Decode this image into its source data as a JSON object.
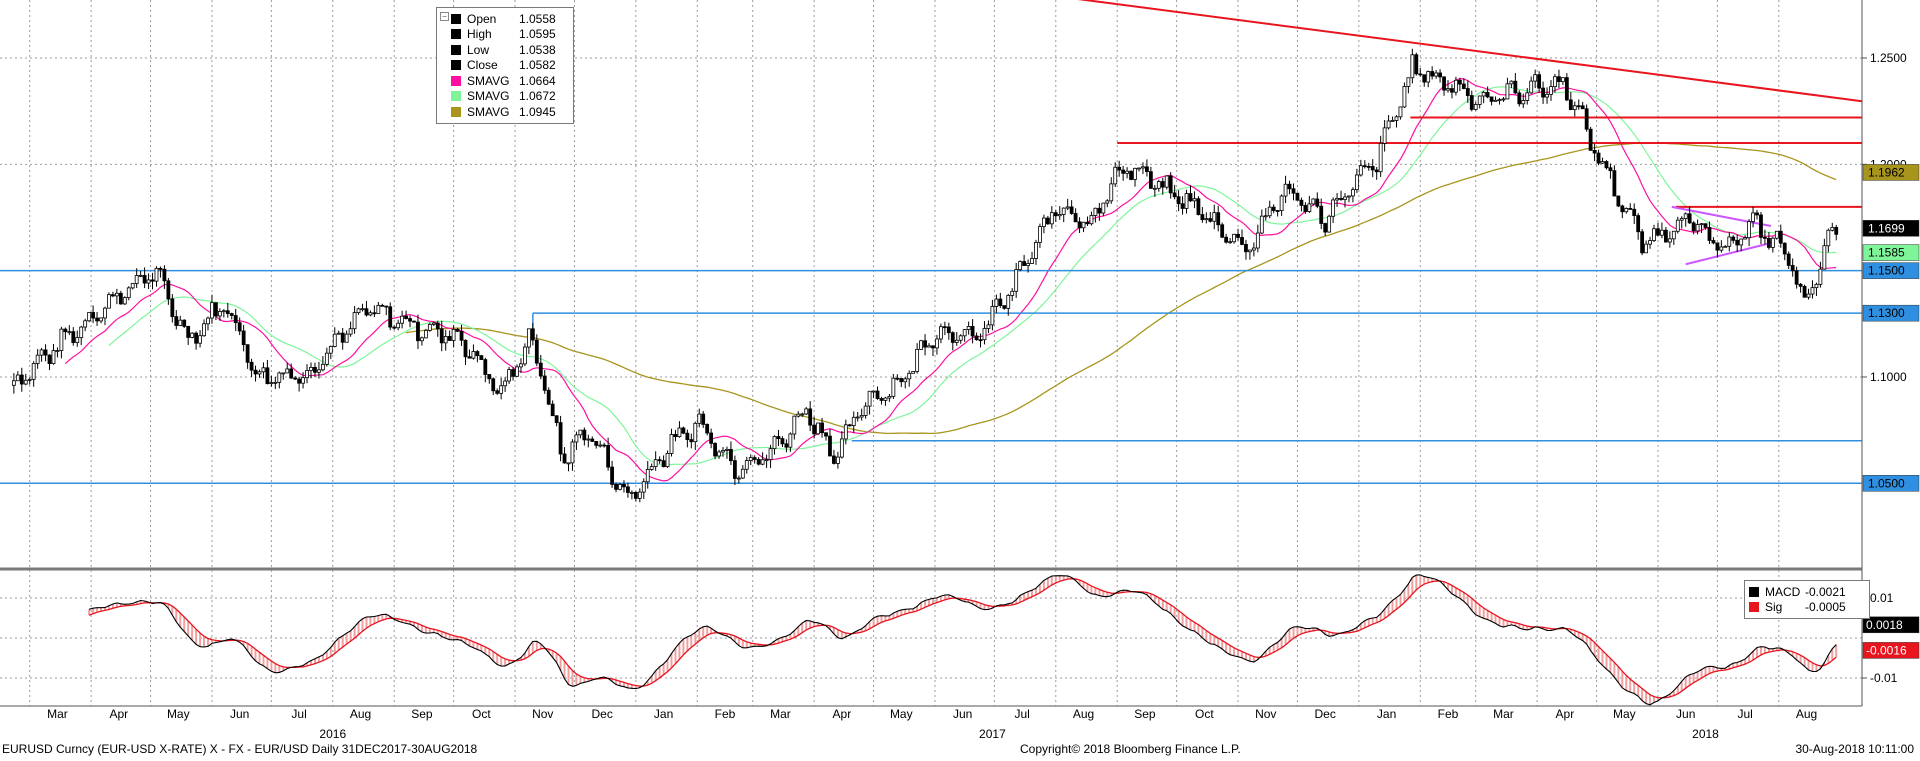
{
  "chart_data": [
    {
      "type": "candlestick",
      "pair": "EURUSD",
      "y_axis_labels": [
        "1.2500",
        "1.2000",
        "1.1000"
      ],
      "ylim": [
        1.02,
        1.28
      ],
      "grid": true,
      "x_month_labels": [
        "Mar",
        "Apr",
        "May",
        "Jun",
        "Jul",
        "Aug",
        "Sep",
        "Oct",
        "Nov",
        "Dec",
        "Jan",
        "Feb",
        "Mar",
        "Apr",
        "May",
        "Jun",
        "Jul",
        "Aug",
        "Sep",
        "Oct",
        "Nov",
        "Dec",
        "Jan",
        "Feb",
        "Mar",
        "Apr",
        "May",
        "Jun",
        "Jul",
        "Aug"
      ],
      "x_year_labels": [
        "2016",
        "2017",
        "2018"
      ],
      "legend": {
        "position": "top-left",
        "entries": [
          {
            "name": "Open",
            "value": "1.0558",
            "color": "#000000"
          },
          {
            "name": "High",
            "value": "1.0595",
            "color": "#000000"
          },
          {
            "name": "Low",
            "value": "1.0538",
            "color": "#000000"
          },
          {
            "name": "Close",
            "value": "1.0582",
            "color": "#000000"
          },
          {
            "name": "SMAVG",
            "value": "1.0664",
            "color": "#ff0fa0"
          },
          {
            "name": "SMAVG",
            "value": "1.0672",
            "color": "#7ff59a"
          },
          {
            "name": "SMAVG",
            "value": "1.0945",
            "color": "#a8951e"
          }
        ]
      },
      "price_points": [
        {
          "date": "2016-02-20",
          "price": 1.095
        },
        {
          "date": "2016-03-15",
          "price": 1.115
        },
        {
          "date": "2016-04-10",
          "price": 1.135
        },
        {
          "date": "2016-05-03",
          "price": 1.15
        },
        {
          "date": "2016-05-20",
          "price": 1.118
        },
        {
          "date": "2016-06-08",
          "price": 1.135
        },
        {
          "date": "2016-06-24",
          "price": 1.1
        },
        {
          "date": "2016-07-20",
          "price": 1.102
        },
        {
          "date": "2016-08-18",
          "price": 1.132
        },
        {
          "date": "2016-09-08",
          "price": 1.125
        },
        {
          "date": "2016-10-05",
          "price": 1.118
        },
        {
          "date": "2016-10-25",
          "price": 1.092
        },
        {
          "date": "2016-11-09",
          "price": 1.12
        },
        {
          "date": "2016-11-25",
          "price": 1.062
        },
        {
          "date": "2016-12-08",
          "price": 1.075
        },
        {
          "date": "2016-12-28",
          "price": 1.042
        },
        {
          "date": "2017-01-18",
          "price": 1.068
        },
        {
          "date": "2017-02-02",
          "price": 1.078
        },
        {
          "date": "2017-02-20",
          "price": 1.058
        },
        {
          "date": "2017-03-10",
          "price": 1.064
        },
        {
          "date": "2017-03-28",
          "price": 1.085
        },
        {
          "date": "2017-04-12",
          "price": 1.062
        },
        {
          "date": "2017-04-26",
          "price": 1.088
        },
        {
          "date": "2017-05-15",
          "price": 1.098
        },
        {
          "date": "2017-06-01",
          "price": 1.122
        },
        {
          "date": "2017-06-22",
          "price": 1.118
        },
        {
          "date": "2017-07-10",
          "price": 1.142
        },
        {
          "date": "2017-08-01",
          "price": 1.18
        },
        {
          "date": "2017-08-18",
          "price": 1.173
        },
        {
          "date": "2017-09-05",
          "price": 1.2
        },
        {
          "date": "2017-09-22",
          "price": 1.19
        },
        {
          "date": "2017-10-10",
          "price": 1.18
        },
        {
          "date": "2017-11-05",
          "price": 1.16
        },
        {
          "date": "2017-11-25",
          "price": 1.188
        },
        {
          "date": "2017-12-15",
          "price": 1.175
        },
        {
          "date": "2018-01-10",
          "price": 1.202
        },
        {
          "date": "2018-01-28",
          "price": 1.245
        },
        {
          "date": "2018-02-15",
          "price": 1.238
        },
        {
          "date": "2018-03-05",
          "price": 1.23
        },
        {
          "date": "2018-03-25",
          "price": 1.235
        },
        {
          "date": "2018-04-15",
          "price": 1.238
        },
        {
          "date": "2018-05-01",
          "price": 1.205
        },
        {
          "date": "2018-05-25",
          "price": 1.162
        },
        {
          "date": "2018-06-15",
          "price": 1.175
        },
        {
          "date": "2018-07-02",
          "price": 1.16
        },
        {
          "date": "2018-07-20",
          "price": 1.172
        },
        {
          "date": "2018-08-05",
          "price": 1.158
        },
        {
          "date": "2018-08-15",
          "price": 1.134
        },
        {
          "date": "2018-08-24",
          "price": 1.16
        },
        {
          "date": "2018-08-30",
          "price": 1.17
        }
      ],
      "horizontal_lines": [
        1.25,
        1.222,
        1.21,
        1.18,
        1.15,
        1.13,
        1.07,
        1.05
      ],
      "axis_tags": [
        {
          "label": "1.1962",
          "value": 1.1962,
          "bg": "#a8951e",
          "fg": "#000000"
        },
        {
          "label": "1.1699",
          "value": 1.1699,
          "bg": "#000000",
          "fg": "#ffffff"
        },
        {
          "label": "1.1585",
          "value": 1.1585,
          "bg": "#7ff59a",
          "fg": "#000000"
        },
        {
          "label": "1.1500",
          "value": 1.15,
          "bg": "#2f8fe0",
          "fg": "#000000"
        },
        {
          "label": "1.1300",
          "value": 1.13,
          "bg": "#2f8fe0",
          "fg": "#000000"
        },
        {
          "label": "1.0500",
          "value": 1.05,
          "bg": "#2f8fe0",
          "fg": "#000000"
        }
      ]
    },
    {
      "type": "line",
      "name": "MACD",
      "y_axis_labels": [
        "0.01",
        "-0.01"
      ],
      "ylim": [
        -0.016,
        0.016
      ],
      "legend": {
        "position": "top-right",
        "entries": [
          {
            "name": "MACD",
            "value": "-0.0021",
            "color": "#000000"
          },
          {
            "name": "Sig",
            "value": "-0.0005",
            "color": "#e8141e"
          }
        ]
      },
      "axis_tags": [
        {
          "label": "0.0018",
          "value": 0.0018,
          "bg": "#000000",
          "fg": "#ffffff"
        },
        {
          "label": "-0.0016",
          "value": -0.0016,
          "bg": "#e8141e",
          "fg": "#ffffff"
        }
      ]
    }
  ],
  "footer": {
    "left": "EURUSD Curncy (EUR-USD X-RATE) X - FX - EUR/USD  Daily 31DEC2017-30AUG2018",
    "center": "Copyright© 2018 Bloomberg Finance L.P.",
    "right": "30-Aug-2018 10:11:00"
  },
  "colors": {
    "candles": "#000000",
    "sma_fast": "#ff0fa0",
    "sma_mid": "#7ff59a",
    "sma_slow": "#a8951e",
    "resistance": "#e8141e",
    "support": "#2f8fe0",
    "triangle": "#cc55ff",
    "macd": "#000000",
    "signal": "#e8141e",
    "histogram_fill": "#f0a0a0"
  }
}
